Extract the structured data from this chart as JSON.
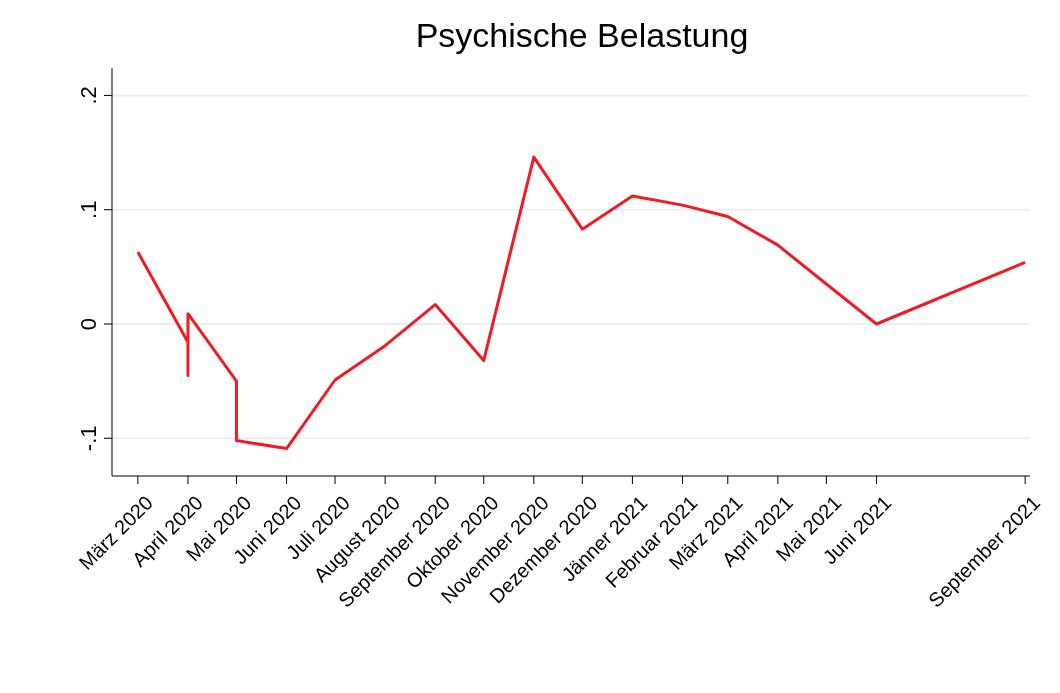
{
  "chart_data": {
    "type": "line",
    "title": "Psychische Belastung",
    "x": [
      "2020-03-01",
      "2020-04-01",
      "2020-04-01",
      "2020-04-01",
      "2020-05-01",
      "2020-05-01",
      "2020-06-01",
      "2020-07-01",
      "2020-08-01",
      "2020-09-01",
      "2020-10-01",
      "2020-11-01",
      "2020-12-01",
      "2021-01-01",
      "2021-02-01",
      "2021-03-01",
      "2021-04-01",
      "2021-05-01",
      "2021-06-01",
      "2021-09-01"
    ],
    "series": [
      {
        "color": "#ee1c25",
        "values": [
          0.063,
          -0.016,
          -0.045,
          0.009,
          -0.05,
          -0.102,
          -0.109,
          -0.049,
          -0.019,
          0.017,
          -0.032,
          0.146,
          0.083,
          0.112,
          0.104,
          0.094,
          0.069,
          0.035,
          0.0,
          0.054
        ]
      }
    ],
    "xlim": [
      "2020-02-14",
      "2021-09-04"
    ],
    "xticks": [
      {
        "value": "2020-03-01",
        "label": "März 2020"
      },
      {
        "value": "2020-04-01",
        "label": "April 2020"
      },
      {
        "value": "2020-05-01",
        "label": "Mai 2020"
      },
      {
        "value": "2020-06-01",
        "label": "Juni 2020"
      },
      {
        "value": "2020-07-01",
        "label": "Juli 2020"
      },
      {
        "value": "2020-08-01",
        "label": "August 2020"
      },
      {
        "value": "2020-09-01",
        "label": "September 2020"
      },
      {
        "value": "2020-10-01",
        "label": "Oktober 2020"
      },
      {
        "value": "2020-11-01",
        "label": "November 2020"
      },
      {
        "value": "2020-12-01",
        "label": "Dezember 2020"
      },
      {
        "value": "2021-01-01",
        "label": "Jänner 2021"
      },
      {
        "value": "2021-02-01",
        "label": "Februar 2021"
      },
      {
        "value": "2021-03-01",
        "label": "März 2021"
      },
      {
        "value": "2021-04-01",
        "label": "April 2021"
      },
      {
        "value": "2021-05-01",
        "label": "Mai 2021"
      },
      {
        "value": "2021-06-01",
        "label": "Juni 2021"
      },
      {
        "value": "2021-09-01",
        "label": "September 2021"
      }
    ],
    "ylim": [
      -0.133,
      0.224
    ],
    "yticks": [
      {
        "value": -0.1,
        "label": "-.1"
      },
      {
        "value": 0,
        "label": "0"
      },
      {
        "value": 0.1,
        "label": ".1"
      },
      {
        "value": 0.2,
        "label": ".2"
      }
    ],
    "grid": "y",
    "marker": "none"
  }
}
